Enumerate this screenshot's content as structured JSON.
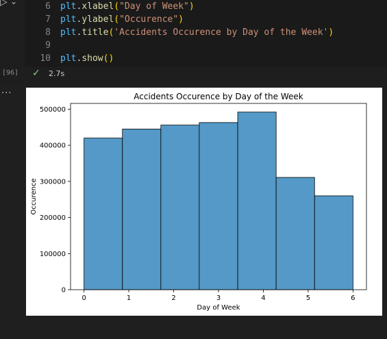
{
  "code": {
    "lines": [
      {
        "num": "6",
        "tokens": [
          {
            "t": "plt",
            "c": "id"
          },
          {
            "t": ".",
            "c": "pun"
          },
          {
            "t": "xlabel",
            "c": "fn"
          },
          {
            "t": "(",
            "c": "par"
          },
          {
            "t": "\"Day of Week\"",
            "c": "str"
          },
          {
            "t": ")",
            "c": "par"
          }
        ]
      },
      {
        "num": "7",
        "tokens": [
          {
            "t": "plt",
            "c": "id"
          },
          {
            "t": ".",
            "c": "pun"
          },
          {
            "t": "ylabel",
            "c": "fn"
          },
          {
            "t": "(",
            "c": "par"
          },
          {
            "t": "\"Occurence\"",
            "c": "str"
          },
          {
            "t": ")",
            "c": "par"
          }
        ]
      },
      {
        "num": "8",
        "tokens": [
          {
            "t": "plt",
            "c": "id"
          },
          {
            "t": ".",
            "c": "pun"
          },
          {
            "t": "title",
            "c": "fn"
          },
          {
            "t": "(",
            "c": "par"
          },
          {
            "t": "'Accidents Occurence by Day of the Week'",
            "c": "str"
          },
          {
            "t": ")",
            "c": "par"
          }
        ]
      },
      {
        "num": "9",
        "tokens": []
      },
      {
        "num": "10",
        "tokens": [
          {
            "t": "plt",
            "c": "id"
          },
          {
            "t": ".",
            "c": "pun"
          },
          {
            "t": "show",
            "c": "fn"
          },
          {
            "t": "()",
            "c": "par"
          }
        ]
      }
    ]
  },
  "execution": {
    "count": "[96]",
    "status_icon": "check-icon",
    "time": "2.7s"
  },
  "output_menu": "...",
  "colors": {
    "bar_fill": "#5499c7",
    "bar_edge": "#000000",
    "success": "#89d185"
  },
  "chart_data": {
    "type": "bar",
    "title": "Accidents Occurence by Day of the Week",
    "xlabel": "Day of Week",
    "ylabel": "Occurence",
    "bins": [
      {
        "x0": 0.0,
        "x1": 0.857,
        "value": 420000
      },
      {
        "x0": 0.857,
        "x1": 1.714,
        "value": 445000
      },
      {
        "x0": 1.714,
        "x1": 2.571,
        "value": 456000
      },
      {
        "x0": 2.571,
        "x1": 3.429,
        "value": 463000
      },
      {
        "x0": 3.429,
        "x1": 4.286,
        "value": 492000
      },
      {
        "x0": 4.286,
        "x1": 5.143,
        "value": 311000
      },
      {
        "x0": 5.143,
        "x1": 6.0,
        "value": 260000
      }
    ],
    "xticks": [
      "0",
      "1",
      "2",
      "3",
      "4",
      "5",
      "6"
    ],
    "yticks": [
      "0",
      "100000",
      "200000",
      "300000",
      "400000",
      "500000"
    ],
    "xlim": [
      -0.3,
      6.3
    ],
    "ylim": [
      0,
      516000
    ],
    "grid": false
  }
}
